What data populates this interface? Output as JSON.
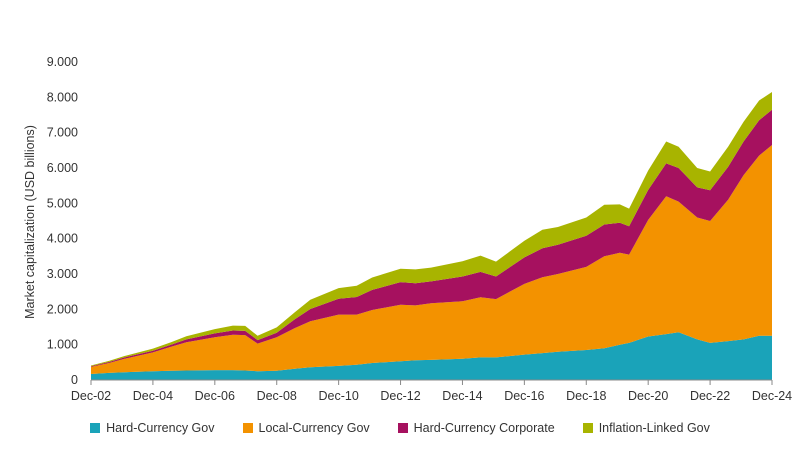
{
  "chart_data": {
    "type": "area",
    "stacked": true,
    "title": "",
    "xlabel": "",
    "ylabel": "Market capitalization (USD billions)",
    "ylim": [
      0,
      9000
    ],
    "yticks": [
      0,
      1000,
      2000,
      3000,
      4000,
      5000,
      6000,
      7000,
      8000,
      9000
    ],
    "ytick_labels": [
      "0",
      "1.000",
      "2.000",
      "3.000",
      "4.000",
      "5.000",
      "6.000",
      "7.000",
      "8.000",
      "9.000"
    ],
    "xlim": [
      2002.917,
      2024.917
    ],
    "xticks": [
      2002.917,
      2004.917,
      2006.917,
      2008.917,
      2010.917,
      2012.917,
      2014.917,
      2016.917,
      2018.917,
      2020.917,
      2022.917,
      2024.917
    ],
    "xtick_labels": [
      "Dec-02",
      "Dec-04",
      "Dec-06",
      "Dec-08",
      "Dec-10",
      "Dec-12",
      "Dec-14",
      "Dec-16",
      "Dec-18",
      "Dec-20",
      "Dec-22",
      "Dec-24"
    ],
    "x": [
      2002.917,
      2003.5,
      2004.0,
      2004.917,
      2005.5,
      2006.0,
      2006.917,
      2007.5,
      2007.9,
      2008.3,
      2008.917,
      2009.5,
      2010.0,
      2010.917,
      2011.5,
      2012.0,
      2012.917,
      2013.4,
      2013.9,
      2014.917,
      2015.5,
      2016.0,
      2016.917,
      2017.5,
      2018.0,
      2018.917,
      2019.5,
      2020.0,
      2020.3,
      2020.917,
      2021.5,
      2021.9,
      2022.5,
      2022.917,
      2023.5,
      2024.0,
      2024.5,
      2024.917
    ],
    "series": [
      {
        "name": "Hard-Currency Gov",
        "color": "#1aa3b9",
        "values": [
          170,
          200,
          220,
          250,
          260,
          270,
          280,
          280,
          270,
          250,
          260,
          320,
          360,
          400,
          430,
          480,
          530,
          560,
          570,
          600,
          640,
          640,
          720,
          760,
          800,
          850,
          900,
          1000,
          1050,
          1230,
          1300,
          1350,
          1150,
          1050,
          1100,
          1150,
          1250,
          1250
        ]
      },
      {
        "name": "Local-Currency Gov",
        "color": "#f39200",
        "values": [
          200,
          280,
          380,
          530,
          680,
          800,
          930,
          1000,
          1000,
          780,
          950,
          1150,
          1300,
          1450,
          1420,
          1500,
          1600,
          1550,
          1600,
          1630,
          1700,
          1650,
          2000,
          2150,
          2200,
          2350,
          2600,
          2600,
          2500,
          3300,
          3900,
          3700,
          3450,
          3450,
          4000,
          4650,
          5100,
          5400
        ]
      },
      {
        "name": "Hard-Currency Corporate",
        "color": "#a6115f",
        "values": [
          20,
          30,
          40,
          50,
          60,
          80,
          110,
          120,
          120,
          100,
          130,
          250,
          350,
          450,
          500,
          570,
          640,
          630,
          620,
          700,
          720,
          640,
          750,
          820,
          830,
          880,
          900,
          850,
          800,
          850,
          930,
          950,
          850,
          870,
          930,
          950,
          1000,
          1000
        ]
      },
      {
        "name": "Inflation-Linked Gov",
        "color": "#a8b400",
        "values": [
          20,
          30,
          40,
          60,
          70,
          90,
          120,
          140,
          140,
          120,
          150,
          200,
          260,
          300,
          320,
          350,
          380,
          390,
          390,
          430,
          460,
          420,
          470,
          520,
          500,
          520,
          560,
          520,
          500,
          550,
          620,
          600,
          550,
          530,
          570,
          560,
          560,
          500
        ]
      }
    ],
    "legend_position": "bottom"
  }
}
